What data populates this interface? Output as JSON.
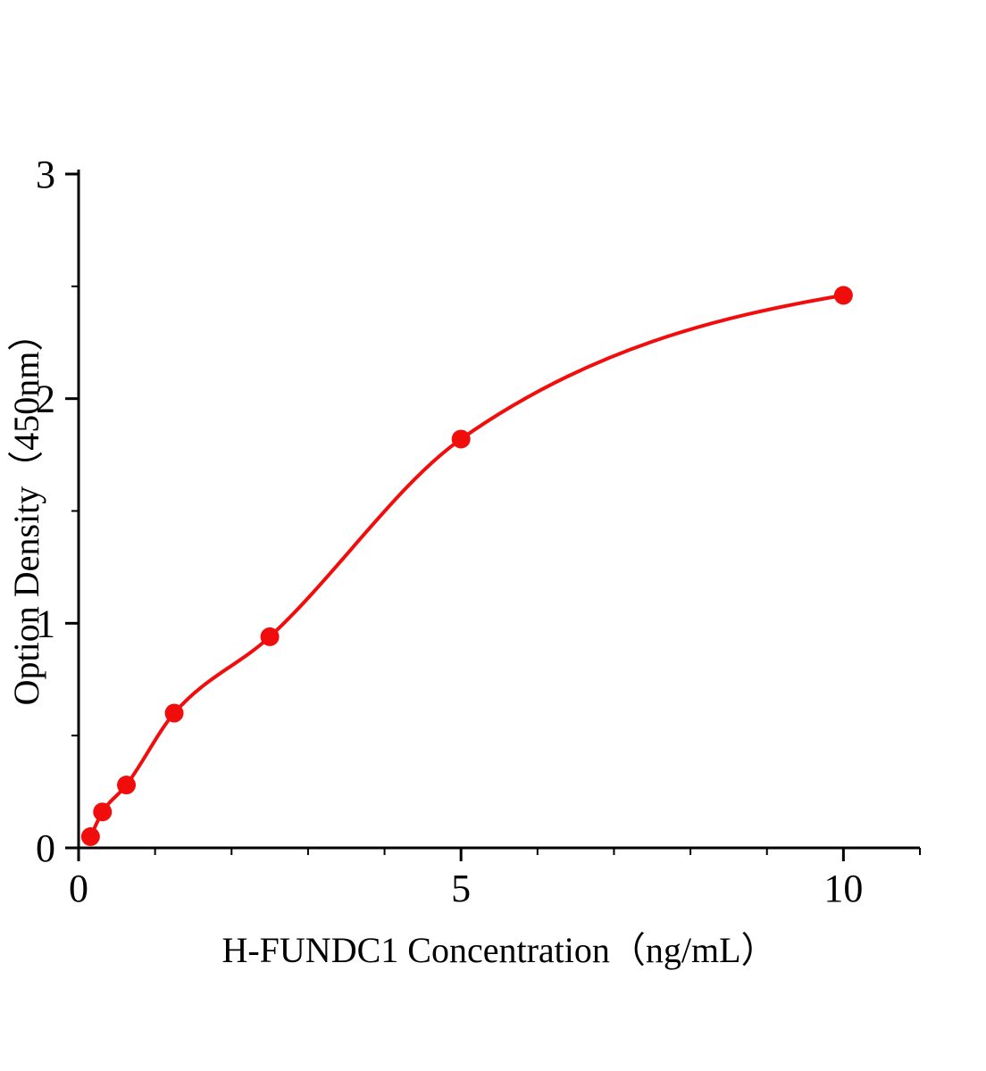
{
  "chart_data": {
    "type": "scatter",
    "title": "",
    "xlabel": "H-FUNDC1 Concentration（ng/mL）",
    "ylabel": "Option Density（450nm）",
    "x": [
      0.156,
      0.3125,
      0.625,
      1.25,
      2.5,
      5,
      10
    ],
    "y": [
      0.05,
      0.16,
      0.28,
      0.6,
      0.94,
      1.82,
      2.46
    ],
    "fit": "smooth saturating standard curve through data points",
    "xlim": [
      0,
      11
    ],
    "ylim": [
      0,
      3
    ],
    "x_ticks": {
      "major": [
        0,
        5,
        10
      ],
      "labels": [
        "0",
        "5",
        "10"
      ],
      "minor_step": 1
    },
    "y_ticks": {
      "major": [
        0,
        1,
        2,
        3
      ],
      "labels": [
        "0",
        "1",
        "2",
        "3"
      ],
      "minor_step": 0.5
    },
    "grid": false,
    "legend": null,
    "colors": {
      "series": "#f20d0d",
      "axis": "#000000",
      "background": "#ffffff"
    }
  }
}
